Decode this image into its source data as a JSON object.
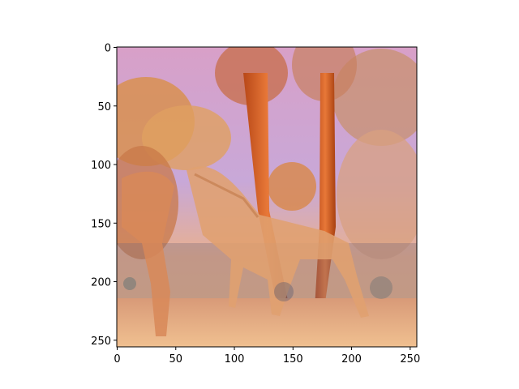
{
  "image": {
    "description_icon": "image-plot",
    "x_axis": {
      "range": [
        0,
        256
      ],
      "ticks": [
        0,
        50,
        100,
        150,
        200,
        250
      ]
    },
    "y_axis": {
      "range": [
        0,
        256
      ],
      "ticks": [
        0,
        50,
        100,
        150,
        200,
        250
      ],
      "inverted": true
    }
  },
  "colors": {
    "sky": "#d8a8c8",
    "foliage": "#d89060",
    "trunk": "#d8602a",
    "giraffe": "#e0a070",
    "ground": "#e8b080",
    "shadow": "#5a6a70"
  }
}
